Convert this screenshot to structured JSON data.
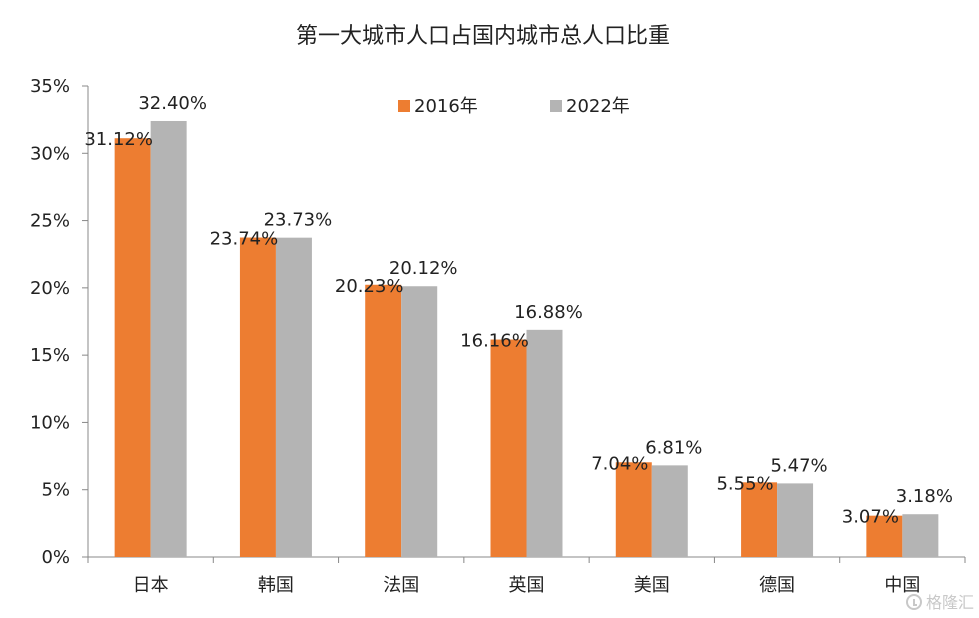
{
  "chart_data": {
    "type": "bar",
    "title": "第一大城市人口占国内城市总人口比重",
    "xlabel": "",
    "ylabel": "",
    "ylim": [
      0,
      35
    ],
    "y_tick_step": 5,
    "y_tick_format": "percent",
    "grid": false,
    "legend_position": "top-center",
    "categories": [
      "日本",
      "韩国",
      "法国",
      "英国",
      "美国",
      "德国",
      "中国"
    ],
    "series": [
      {
        "name": "2016年",
        "color": "#ED7D31",
        "values": [
          31.12,
          23.74,
          20.23,
          16.16,
          7.04,
          5.55,
          3.07
        ],
        "labels": [
          "31.12%",
          "23.74%",
          "20.23%",
          "16.16%",
          "7.04%",
          "5.55%",
          "3.07%"
        ]
      },
      {
        "name": "2022年",
        "color": "#B4B4B4",
        "values": [
          32.4,
          23.73,
          20.12,
          16.88,
          6.81,
          5.47,
          3.18
        ],
        "labels": [
          "32.40%",
          "23.73%",
          "20.12%",
          "16.88%",
          "6.81%",
          "5.47%",
          "3.18%"
        ]
      }
    ]
  },
  "watermark": {
    "text": "格隆汇",
    "icon": "glh-logo-icon"
  }
}
